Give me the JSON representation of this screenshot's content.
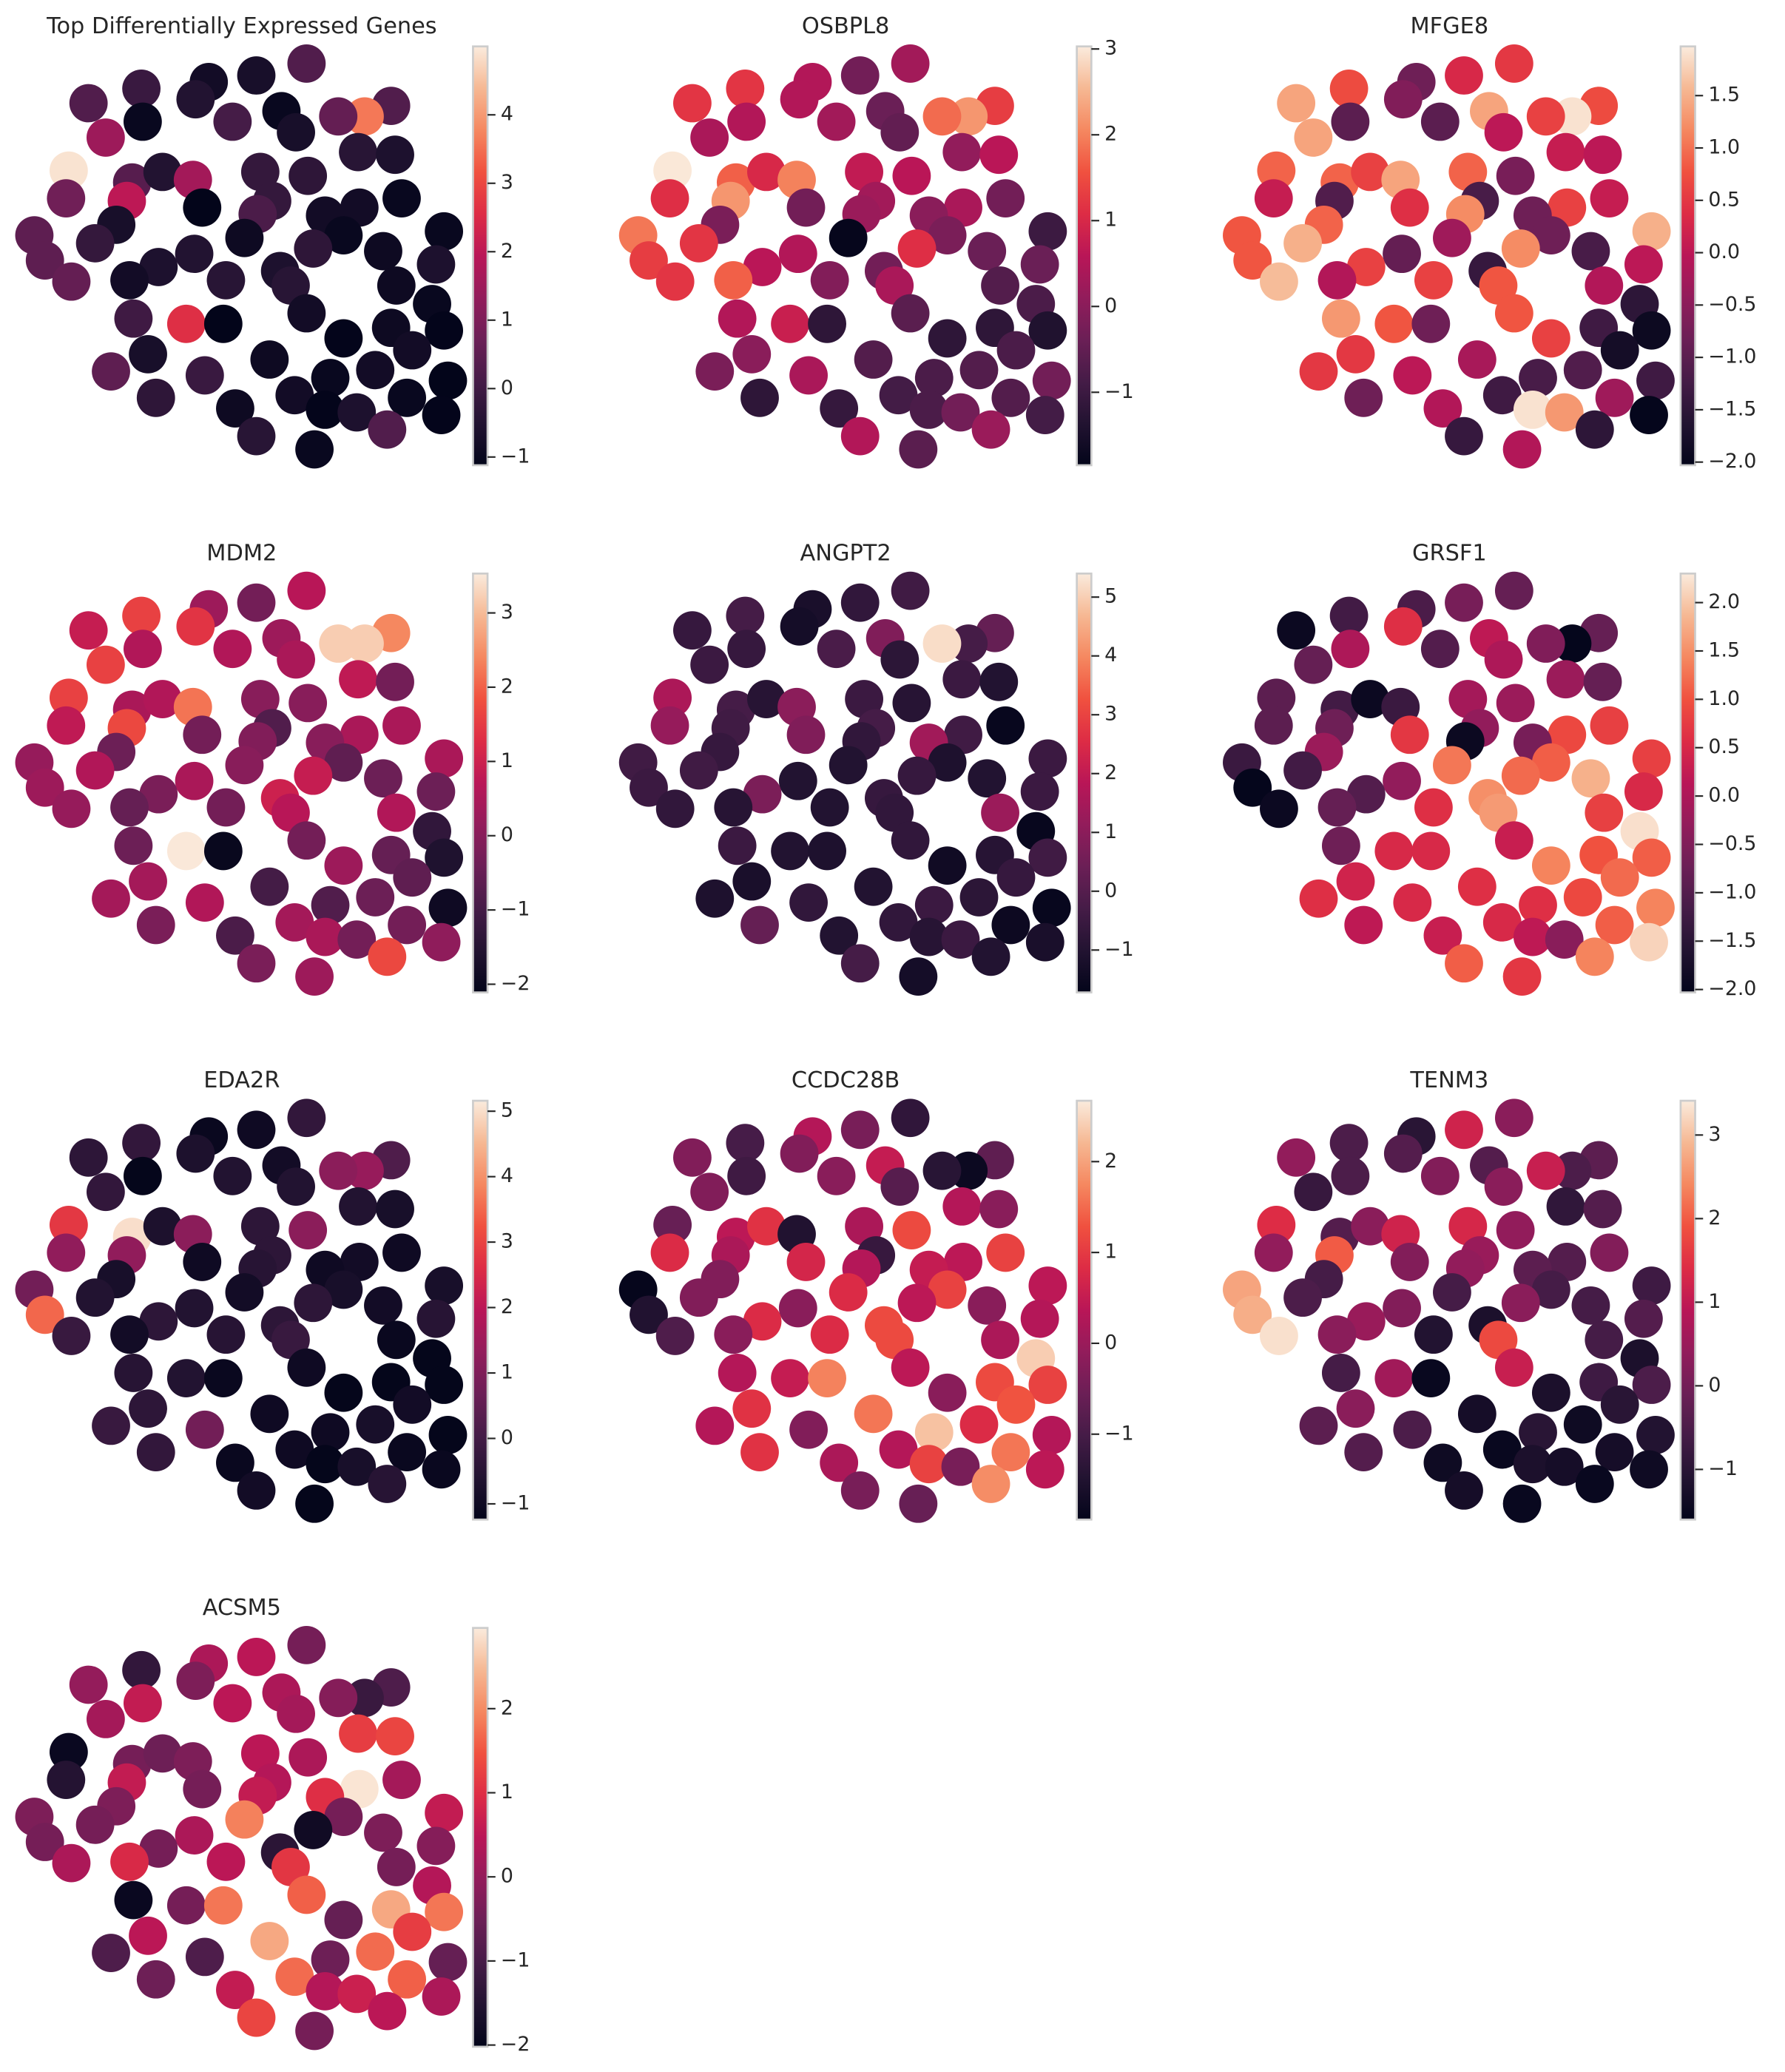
{
  "chart_data": {
    "type": "scatter",
    "xlim": [
      0,
      360
    ],
    "ylim": [
      0,
      360
    ],
    "colormap": [
      "#03051a",
      "#221331",
      "#451c47",
      "#6b1f56",
      "#921c5b",
      "#b91657",
      "#dd2c45",
      "#f0513f",
      "#f58860",
      "#f6b893",
      "#faebdd"
    ],
    "x": [
      232,
      194,
      158,
      107,
      67,
      148,
      213,
      296,
      276,
      256,
      108,
      176,
      224,
      80,
      271,
      299,
      52,
      100,
      123,
      197,
      233,
      146,
      50,
      96,
      206,
      153,
      195,
      304,
      272,
      246,
      88,
      260,
      336,
      26,
      72,
      185,
      237,
      290,
      34,
      147,
      120,
      212,
      330,
      54,
      98,
      171,
      300,
      220,
      327,
      232,
      101,
      141,
      169,
      296,
      260,
      336,
      312,
      112,
      204,
      284,
      84,
      155,
      250,
      339,
      223,
      118,
      308,
      178,
      246,
      270,
      334,
      194,
      293,
      238
    ],
    "y": [
      312,
      303,
      298,
      293,
      282,
      285,
      276,
      280,
      272,
      272,
      268,
      268,
      260,
      256,
      245,
      243,
      231,
      222,
      230,
      230,
      227,
      224,
      210,
      208,
      208,
      203,
      198,
      210,
      203,
      197,
      190,
      182,
      185,
      182,
      176,
      180,
      172,
      170,
      163,
      168,
      158,
      155,
      160,
      147,
      148,
      148,
      144,
      144,
      130,
      123,
      119,
      115,
      115,
      112,
      104,
      110,
      95,
      92,
      88,
      80,
      79,
      76,
      74,
      72,
      61,
      59,
      59,
      51,
      50,
      48,
      46,
      30,
      35,
      20
    ],
    "panels": [
      {
        "title": "Top Differentially Expressed Genes",
        "clim": [
          -1.12,
          5.0
        ],
        "cticks": [
          {
            "value": -1,
            "label": "−1"
          },
          0,
          1,
          2,
          3,
          4
        ],
        "values": [
          0.3,
          -0.7,
          -0.8,
          -0.1,
          0.3,
          -0.5,
          -1.0,
          0.3,
          3.6,
          0.6,
          -1.0,
          0.1,
          -0.7,
          1.5,
          -0.4,
          -0.6,
          4.9,
          0.4,
          -0.5,
          -0.2,
          -0.3,
          1.6,
          0.8,
          2.0,
          -0.2,
          -1.2,
          0.2,
          -1.0,
          -0.8,
          -0.8,
          -0.7,
          -1.0,
          -1.0,
          0.5,
          -0.2,
          -0.9,
          -0.3,
          -0.9,
          0.5,
          -0.5,
          -0.6,
          -0.6,
          -0.6,
          0.6,
          -0.8,
          -0.4,
          -0.9,
          -0.4,
          -1.0,
          -0.8,
          0,
          2.6,
          -1.2,
          -0.9,
          -1.1,
          -1.1,
          -0.8,
          -0.7,
          -0.9,
          -0.8,
          0.5,
          -0.1,
          -1.0,
          -1.2,
          -0.8,
          -0.3,
          -1.0,
          -0.9,
          -1.1,
          -0.6,
          -1.1,
          -0.4,
          0.3,
          -1.0
        ]
      },
      {
        "title": "OSBPL8",
        "clim": [
          -1.85,
          3.03
        ],
        "cticks": [
          {
            "value": -1,
            "label": "−1"
          },
          0,
          1,
          2,
          3
        ],
        "values": [
          0.3,
          -0.3,
          0.5,
          1.2,
          1.2,
          0.5,
          -0.4,
          1.3,
          2.2,
          1.8,
          0.5,
          0.3,
          -0.5,
          0.4,
          0.1,
          0.6,
          3.0,
          1.7,
          1.0,
          0.7,
          0.6,
          2.0,
          1.1,
          2.2,
          0.3,
          -0.3,
          0.2,
          -0.3,
          0.4,
          0,
          -0.2,
          -0.2,
          -1.0,
          1.9,
          1.2,
          -1.8,
          1.1,
          -0.4,
          1.3,
          0.5,
          0.6,
          -0.3,
          -0.4,
          1.2,
          1.7,
          -0.1,
          -0.7,
          0.4,
          -0.8,
          -0.6,
          0.5,
          0.8,
          -1.2,
          -1.2,
          -1.2,
          -1.4,
          -0.8,
          0,
          -0.7,
          -0.7,
          -0.2,
          0.4,
          -0.8,
          -0.3,
          -0.9,
          -1.2,
          -0.7,
          -1.1,
          -0.8,
          -0.3,
          -0.9,
          0.5,
          0.2,
          -0.6
        ]
      },
      {
        "title": "MFGE8",
        "clim": [
          -2.03,
          1.97
        ],
        "cticks": [
          {
            "value": -2,
            "label": "−2.0"
          },
          {
            "value": -1.5,
            "label": "−1.5"
          },
          {
            "value": -1,
            "label": "−1.0"
          },
          {
            "value": -0.5,
            "label": "−0.5"
          },
          {
            "value": 0,
            "label": "0.0"
          },
          0.5,
          {
            "value": 1,
            "label": "1.0"
          },
          1.5
        ],
        "values": [
          0.5,
          0.3,
          -0.8,
          0.7,
          1.4,
          -0.6,
          1.4,
          0.7,
          1.9,
          0.6,
          -1.0,
          -1.0,
          0,
          1.4,
          0.1,
          0,
          0.9,
          0.9,
          0.6,
          0.9,
          -0.7,
          1.4,
          0.1,
          -1.1,
          -1.2,
          0.4,
          1.2,
          0.1,
          0.6,
          -0.8,
          0.9,
          -0.8,
          1.5,
          0.8,
          1.5,
          -0.3,
          1.2,
          -1.2,
          0.8,
          -0.9,
          0.6,
          -1.4,
          0,
          1.6,
          -0.1,
          0.6,
          -0.1,
          0.8,
          -1.5,
          0.8,
          1.3,
          0.8,
          -0.8,
          -1.3,
          0.6,
          -1.9,
          -1.8,
          0.5,
          -0.2,
          -1.1,
          0.5,
          0,
          -1.2,
          -1.3,
          -1.3,
          -0.8,
          -0.3,
          -0.1,
          1.9,
          1.3,
          -2.0,
          -1.4,
          -1.5,
          -0.1
        ]
      },
      {
        "title": "MDM2",
        "clim": [
          -2.11,
          3.53
        ],
        "cticks": [
          {
            "value": -2,
            "label": "−2"
          },
          {
            "value": -1,
            "label": "−1"
          },
          0,
          1,
          2,
          3
        ],
        "values": [
          0.7,
          -0.3,
          0.3,
          1.6,
          0.9,
          1.4,
          0.3,
          2.4,
          3.2,
          3.2,
          0.6,
          0.6,
          0.5,
          1.6,
          0.8,
          -0.3,
          1.6,
          0.5,
          0.6,
          0,
          0,
          2.2,
          0.8,
          1.7,
          -0.8,
          -0.3,
          -0.1,
          0.5,
          0.5,
          0,
          -0.4,
          -0.6,
          0.5,
          0.2,
          0.6,
          0,
          0.9,
          -0.4,
          0.3,
          0.5,
          -0.2,
          1.0,
          -0.4,
          0.2,
          -0.5,
          -0.3,
          0.6,
          0.7,
          -1.3,
          -0.3,
          -0.4,
          3.5,
          -2.0,
          -0.5,
          0.3,
          -1.6,
          -0.6,
          0.4,
          -1.0,
          -0.4,
          0.4,
          0.6,
          -0.8,
          -1.9,
          0.4,
          -0.2,
          -0.3,
          -0.9,
          0.5,
          -0.3,
          0.1,
          -0.2,
          1.7,
          0.3
        ]
      },
      {
        "title": "ANGPT2",
        "clim": [
          -1.72,
          5.4
        ],
        "cticks": [
          {
            "value": -1,
            "label": "−1"
          },
          0,
          1,
          2,
          3,
          4,
          5
        ],
        "values": [
          -0.4,
          -0.7,
          -1.2,
          -0.3,
          -0.6,
          -1.3,
          0.8,
          0.3,
          -0.3,
          5.2,
          -0.6,
          -0.2,
          -0.8,
          -0.5,
          -0.5,
          -1.0,
          1.6,
          -0.3,
          -0.9,
          -0.5,
          -0.9,
          1.0,
          1.2,
          -0.4,
          -0.3,
          0.8,
          -0.7,
          -1.6,
          -0.4,
          1.4,
          -0.6,
          -1.1,
          -0.5,
          -0.4,
          -0.4,
          -1.0,
          -0.6,
          -1.0,
          -0.5,
          -1.0,
          0.7,
          -0.6,
          -0.5,
          -0.7,
          -0.9,
          -1.0,
          1.3,
          -0.7,
          -1.6,
          -0.7,
          -0.5,
          -1.0,
          -1.1,
          -0.9,
          -1.4,
          -0.4,
          -0.6,
          -1.2,
          -1.0,
          -0.8,
          -1.1,
          -0.7,
          -0.5,
          -1.6,
          -0.7,
          0.3,
          -1.5,
          -1.0,
          -0.9,
          -0.5,
          -1.2,
          -0.3,
          -1.0,
          -1.3
        ]
      },
      {
        "title": "GRSF1",
        "clim": [
          -2.03,
          2.3
        ],
        "cticks": [
          {
            "value": -2,
            "label": "−2.0"
          },
          {
            "value": -1.5,
            "label": "−1.5"
          },
          {
            "value": -1,
            "label": "−1.0"
          },
          {
            "value": -0.5,
            "label": "−0.5"
          },
          {
            "value": 0,
            "label": "0.0"
          },
          0.5,
          {
            "value": 1,
            "label": "1.0"
          },
          1.5,
          {
            "value": 2,
            "label": "2.0"
          }
        ],
        "values": [
          -0.8,
          -0.6,
          -1.1,
          -1.2,
          -1.9,
          0.6,
          0.2,
          -0.8,
          -2.0,
          -0.5,
          0,
          -1.0,
          0,
          -0.8,
          -0.2,
          -0.8,
          -0.9,
          -1.2,
          -1.9,
          -0.1,
          -0.2,
          -1.3,
          -0.9,
          -0.7,
          -0.3,
          0.7,
          -1.9,
          0.8,
          0.9,
          -0.6,
          -0.2,
          1.1,
          0.8,
          -1.3,
          -1.2,
          1.3,
          1.2,
          1.8,
          -2.0,
          -0.3,
          -1.0,
          1.5,
          0.5,
          -1.9,
          -0.8,
          0.6,
          0.8,
          1.6,
          2.2,
          0.3,
          -0.7,
          0.5,
          0.5,
          1.0,
          1.4,
          1.1,
          1.2,
          0.4,
          0.6,
          0.9,
          0.6,
          0.5,
          0.6,
          1.4,
          0.5,
          0.2,
          1.1,
          0.3,
          0.2,
          -0.4,
          2.1,
          1.1,
          1.4,
          0.7
        ]
      },
      {
        "title": "EDA2R",
        "clim": [
          -1.24,
          5.16
        ],
        "cticks": [
          {
            "value": -1,
            "label": "−1"
          },
          0,
          1,
          2,
          3,
          4,
          5
        ],
        "values": [
          -0.3,
          -1.0,
          -1.1,
          -0.3,
          -0.4,
          -0.7,
          -0.9,
          0.2,
          1.4,
          1.2,
          -1.2,
          -0.6,
          -0.6,
          -0.3,
          -0.6,
          -0.8,
          2.8,
          5.0,
          -0.7,
          -0.4,
          1.2,
          1.2,
          1.3,
          1.3,
          -0.4,
          -1.0,
          -0.5,
          -1.0,
          -0.9,
          -1.0,
          -0.8,
          -0.8,
          -0.8,
          0.8,
          -0.6,
          -0.9,
          -0.4,
          -0.9,
          3.5,
          -0.6,
          -0.4,
          -0.4,
          -0.5,
          -0.2,
          -0.9,
          -0.5,
          -1.1,
          -0.2,
          -1.2,
          -1.0,
          -0.5,
          -0.6,
          -1.1,
          -1.2,
          -1.2,
          -1.2,
          -0.9,
          -0.4,
          -1.0,
          -0.8,
          -0.2,
          0.8,
          -1.0,
          -1.2,
          -1.0,
          -0.3,
          -1.1,
          -1.1,
          -1.2,
          -0.8,
          -1.1,
          -0.9,
          -0.5,
          -1.2
        ]
      },
      {
        "title": "CCDC28B",
        "clim": [
          -1.94,
          2.67
        ],
        "cticks": [
          {
            "value": -1,
            "label": "−1"
          },
          0,
          1,
          2
        ],
        "values": [
          -1.3,
          -0.4,
          0.3,
          -1.0,
          -0.3,
          -0.3,
          0.5,
          -0.7,
          -1.8,
          -1.4,
          -1.1,
          -0.2,
          -0.8,
          -0.3,
          0.3,
          -0.2,
          -0.6,
          0.4,
          0.9,
          0.2,
          1.2,
          -1.5,
          0.8,
          0.2,
          -1.2,
          0.7,
          0.3,
          1.1,
          0.4,
          0.5,
          -0.3,
          1.1,
          0.4,
          -1.9,
          -0.3,
          0.8,
          0.4,
          -0.2,
          -1.5,
          -0.2,
          0.8,
          1.2,
          0.3,
          -0.9,
          -0.2,
          0.8,
          0.2,
          1.2,
          2.4,
          0.4,
          0.3,
          0.5,
          1.7,
          1.2,
          -0.2,
          1.1,
          1.3,
          0.9,
          1.6,
          0.8,
          0.3,
          -0.3,
          2.3,
          0.3,
          0.3,
          0.9,
          1.6,
          0.2,
          1.1,
          -0.4,
          0.4,
          -0.4,
          1.8,
          -0.6
        ]
      },
      {
        "title": "TENM3",
        "clim": [
          -1.6,
          3.41
        ],
        "cticks": [
          {
            "value": -1,
            "label": "−1"
          },
          0,
          1,
          2,
          3
        ],
        "values": [
          0.3,
          1.2,
          -1.0,
          -0.5,
          0.4,
          -0.4,
          -0.4,
          -0.3,
          -0.5,
          1.1,
          -0.5,
          0.2,
          0.3,
          -0.8,
          -0.9,
          -0.4,
          1.4,
          -0.4,
          0.3,
          1.3,
          0.4,
          1.2,
          0.4,
          2.0,
          0.5,
          0.2,
          0.4,
          0.2,
          -0.4,
          -0.3,
          -0.6,
          -0.6,
          -0.7,
          2.7,
          -0.5,
          -0.6,
          0.3,
          -0.6,
          2.8,
          0.2,
          0.5,
          -1.2,
          -0.4,
          3.3,
          0.3,
          -1.1,
          -0.6,
          1.8,
          -1.2,
          1.1,
          -0.6,
          0.6,
          -1.5,
          -0.7,
          -1.2,
          -0.5,
          -1.0,
          0.3,
          -1.3,
          -1.4,
          -0.3,
          -0.5,
          -1.0,
          -1.1,
          -1.5,
          -0.4,
          -1.3,
          -1.4,
          -1.2,
          -1.3,
          -1.4,
          -1.3,
          -1.5,
          -1.5
        ]
      },
      {
        "title": "ACSM5",
        "clim": [
          -2.02,
          2.96
        ],
        "cticks": [
          {
            "value": -2,
            "label": "−2"
          },
          {
            "value": -1,
            "label": "−1"
          },
          0,
          1,
          2
        ],
        "values": [
          -0.4,
          0.5,
          0.3,
          -1.3,
          0,
          -0.3,
          0.3,
          -0.9,
          -1.2,
          -0.2,
          0.6,
          0.5,
          0.2,
          0.2,
          1.2,
          1.3,
          -1.9,
          -0.4,
          -0.5,
          0.5,
          0.3,
          -0.3,
          -1.5,
          0.6,
          0.4,
          -0.4,
          0.6,
          0.2,
          2.9,
          1.0,
          -0.3,
          -0.4,
          0.6,
          -0.3,
          -0.4,
          1.9,
          -1.8,
          -0.3,
          -0.4,
          0.3,
          -0.4,
          -1.4,
          -0.2,
          0.3,
          0.9,
          0.5,
          -0.4,
          1.1,
          0.4,
          1.6,
          -1.9,
          -0.4,
          1.8,
          2.3,
          -0.6,
          1.8,
          1.2,
          0.5,
          2.3,
          1.7,
          -0.9,
          -0.9,
          -0.5,
          -0.6,
          1.7,
          -0.5,
          1.6,
          0.6,
          0.4,
          0.7,
          0.3,
          1.3,
          0.5,
          -0.4
        ]
      }
    ]
  }
}
